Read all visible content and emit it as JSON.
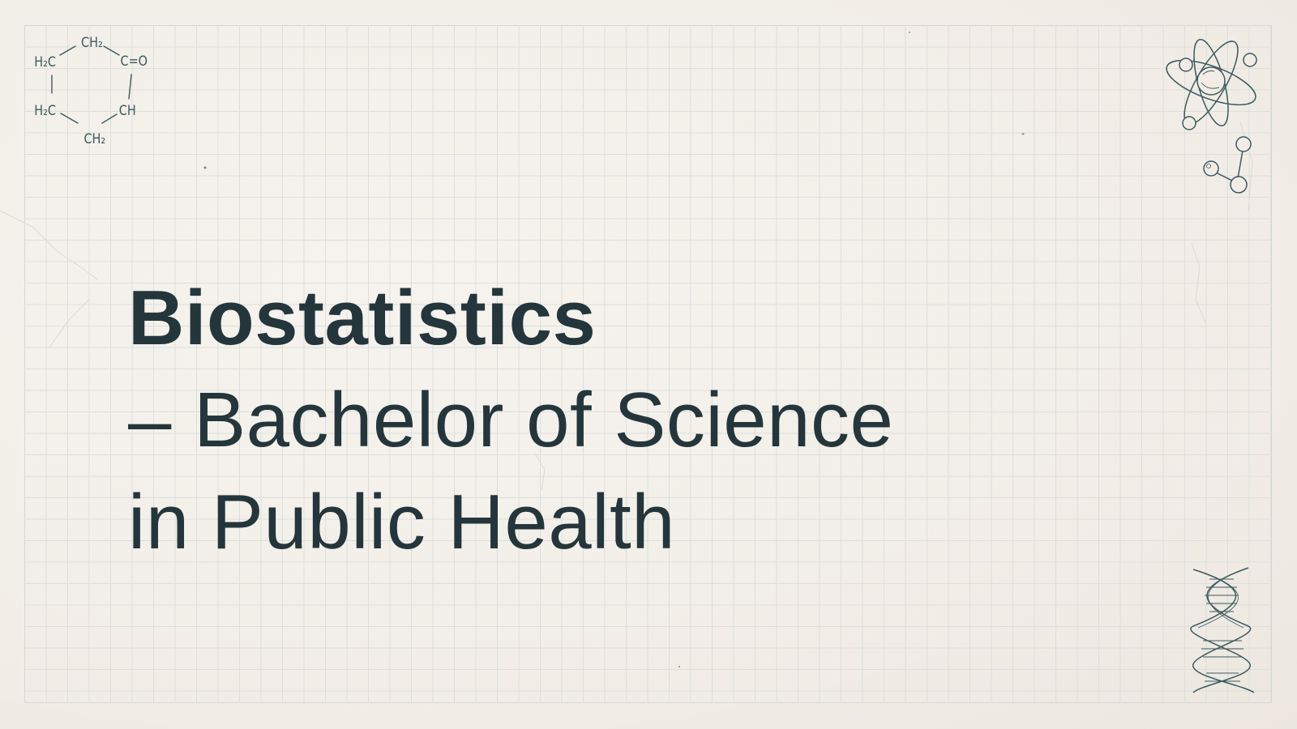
{
  "slide": {
    "title_bold": "Biostatistics",
    "title_line2": "– Bachelor of Science",
    "title_line3": "in Public Health"
  },
  "decorations": {
    "molecule": {
      "icon": "cyclohexenone-structure-icon",
      "labels": {
        "top": "CH₂",
        "top_left": "H₂C",
        "top_right": "C=O",
        "bottom_left": "H₂C",
        "bottom_right": "CH",
        "bottom": "CH₂"
      }
    },
    "atom_icon": "atom-icon",
    "molecule_bond_icon": "molecule-icon",
    "dna_icon": "dna-helix-icon"
  },
  "colors": {
    "background": "#f4f1eb",
    "grid": "#dcdfdc",
    "text": "#24363c",
    "sketch": "#3c5a5f"
  }
}
